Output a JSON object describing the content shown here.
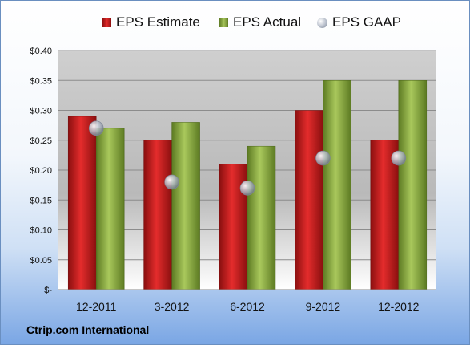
{
  "chart_data": {
    "type": "bar",
    "categories": [
      "12-2011",
      "3-2012",
      "6-2012",
      "9-2012",
      "12-2012"
    ],
    "series": [
      {
        "name": "EPS Estimate",
        "values": [
          0.29,
          0.25,
          0.21,
          0.3,
          0.25
        ],
        "color": "#d42020",
        "mark": "bar"
      },
      {
        "name": "EPS Actual",
        "values": [
          0.27,
          0.28,
          0.24,
          0.35,
          0.35
        ],
        "color": "#8fae47",
        "mark": "bar"
      },
      {
        "name": "EPS GAAP",
        "values": [
          0.27,
          0.18,
          0.17,
          0.22,
          0.22
        ],
        "color": "#a9b1be",
        "mark": "marker"
      }
    ],
    "yticks": [
      "$-",
      "$0.05",
      "$0.10",
      "$0.15",
      "$0.20",
      "$0.25",
      "$0.30",
      "$0.35",
      "$0.40"
    ],
    "ylim": [
      0,
      0.4
    ],
    "grid": true,
    "legend": "top"
  },
  "footer": {
    "company": "Ctrip.com International"
  }
}
